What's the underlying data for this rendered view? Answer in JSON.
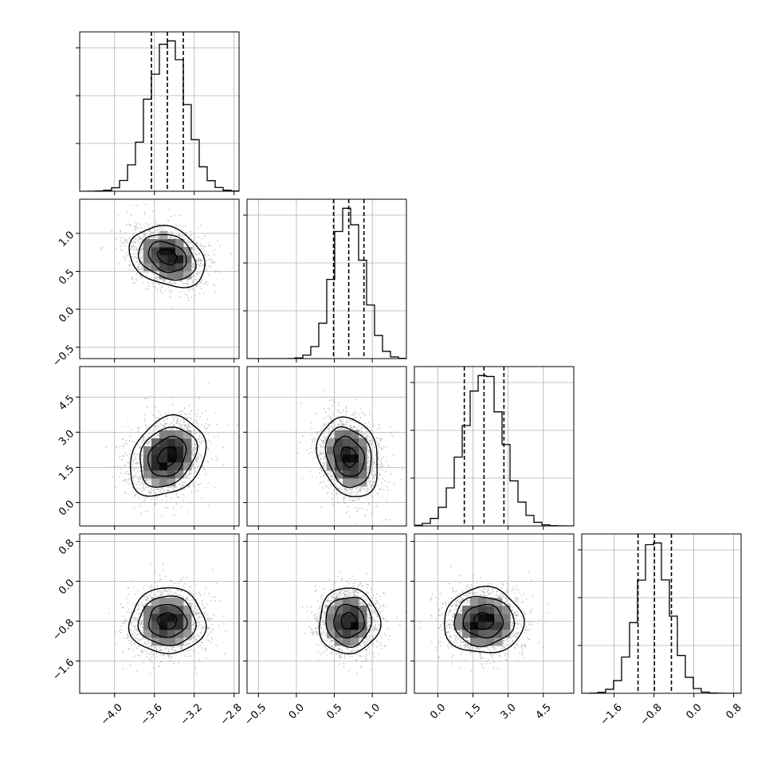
{
  "chart_data": {
    "type": "corner",
    "grid": true,
    "legend": "none",
    "parameters": [
      {
        "index": 0,
        "range": [
          -4.35,
          -2.75
        ],
        "ticks": [
          -4.0,
          -3.6,
          -3.2,
          -2.8
        ],
        "tick_labels": [
          "−4.0",
          "−3.6",
          "−3.2",
          "−2.8"
        ],
        "mean": -3.47,
        "sigma": 0.19,
        "quantiles": [
          -3.63,
          -3.47,
          -3.31
        ]
      },
      {
        "index": 1,
        "range": [
          -0.65,
          1.45
        ],
        "ticks": [
          -0.5,
          0.0,
          0.5,
          1.0
        ],
        "tick_labels": [
          "−0.5",
          "0.0",
          "0.5",
          "1.0"
        ],
        "mean": 0.69,
        "sigma": 0.2,
        "quantiles": [
          0.49,
          0.69,
          0.89
        ]
      },
      {
        "index": 2,
        "range": [
          -1.0,
          5.8
        ],
        "ticks": [
          0.0,
          1.5,
          3.0,
          4.5
        ],
        "tick_labels": [
          "0.0",
          "1.5",
          "3.0",
          "4.5"
        ],
        "mean": 1.95,
        "sigma": 0.85,
        "quantiles": [
          1.13,
          1.97,
          2.82
        ]
      },
      {
        "index": 3,
        "range": [
          -2.25,
          0.95
        ],
        "ticks": [
          -1.6,
          -0.8,
          0.0,
          0.8
        ],
        "tick_labels": [
          "−1.6",
          "−0.8",
          "0.0",
          "0.8"
        ],
        "mean": -0.8,
        "sigma": 0.33,
        "quantiles": [
          -1.12,
          -0.79,
          -0.45
        ]
      }
    ],
    "correlations": [
      {
        "pair": [
          1,
          0
        ],
        "rho": -0.25
      },
      {
        "pair": [
          2,
          0
        ],
        "rho": 0.25
      },
      {
        "pair": [
          2,
          1
        ],
        "rho": -0.2
      },
      {
        "pair": [
          3,
          0
        ],
        "rho": 0.0
      },
      {
        "pair": [
          3,
          1
        ],
        "rho": 0.0
      },
      {
        "pair": [
          3,
          2
        ],
        "rho": 0.0
      }
    ],
    "contour_levels_sigma": [
      0.5,
      1.0,
      1.5,
      2.0
    ],
    "histogram_bins": 20
  }
}
